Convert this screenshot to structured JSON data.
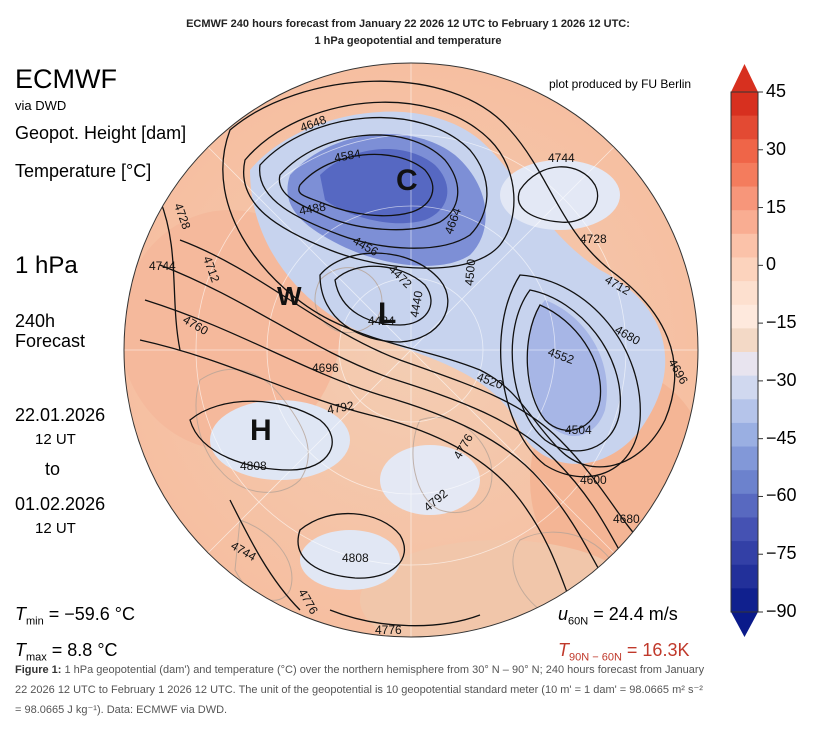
{
  "header": {
    "title_line1": "ECMWF 240 hours forecast from January 22 2026 12 UTC to February 1 2026 12 UTC:",
    "title_line2": "1 hPa geopotential and temperature",
    "credit": "plot produced by FU Berlin"
  },
  "left_panel": {
    "model": "ECMWF",
    "source": "via DWD",
    "geopot_label": "Geopot. Height [dam]",
    "temp_label": "Temperature [°C]",
    "level": "1 hPa",
    "lead_line1": "240h",
    "lead_line2": "Forecast",
    "date_from": "22.01.2026",
    "time_from": "12 UT",
    "to_word": "to",
    "date_to": "01.02.2026",
    "time_to": "12 UT"
  },
  "stats": {
    "tmin_label": "T",
    "tmin_sub": "min",
    "tmin_value": " = −59.6 °C",
    "tmax_label": "T",
    "tmax_sub": "max",
    "tmax_value": " = 8.8 °C",
    "u_label": "u",
    "u_sub": "60N",
    "u_value": " = 24.4 m/s",
    "t_label": "T",
    "t_sub": "90N − 60N",
    "t_value": " = 16.3K"
  },
  "map_labels": {
    "low_C": "C",
    "low_L": "L",
    "warm_W": "W",
    "high_H": "H"
  },
  "contour_labels": [
    "4648",
    "4584",
    "4488",
    "4456",
    "4472",
    "4424",
    "4440",
    "4500",
    "4664",
    "4744",
    "4728",
    "4712",
    "4680",
    "4696",
    "4552",
    "4520",
    "4504",
    "4600",
    "4680",
    "4728",
    "4744",
    "4712",
    "4760",
    "4696",
    "4792",
    "4808",
    "4808",
    "4744",
    "4776",
    "4792",
    "4776",
    "4776"
  ],
  "colorbar": {
    "ticks": [
      "45",
      "30",
      "15",
      "0",
      "−15",
      "−30",
      "−45",
      "−60",
      "−75",
      "−90"
    ],
    "colors": [
      "#d7301f",
      "#e34a33",
      "#ef6548",
      "#f47c5d",
      "#f7967a",
      "#f9ad92",
      "#fbc2a9",
      "#fcd3bd",
      "#fde0cf",
      "#fee9dd",
      "#f3d9c6",
      "#e8e4ef",
      "#d0d8ef",
      "#b5c4ea",
      "#9aafe2",
      "#8298d8",
      "#6c82cd",
      "#5869c0",
      "#4552b3",
      "#3340a6",
      "#22309a",
      "#10208e"
    ],
    "color_top": "#d7301f",
    "color_bottom": "#0a1a8a"
  },
  "caption": {
    "fig": "Figure 1:",
    "text1": " 1 hPa geopotential (dam') and temperature (°C) over the northern hemisphere from 30° N – 90° N; 240 hours forecast from January",
    "text2": "22 2026 12 UTC to February 1 2026 12 UTC. The unit of the geopotential is 10 geopotential standard meter (10 m' = 1 dam' = 98.0665 m² s⁻²",
    "text3": "= 98.0665 J kg⁻¹). Data: ECMWF via DWD."
  }
}
